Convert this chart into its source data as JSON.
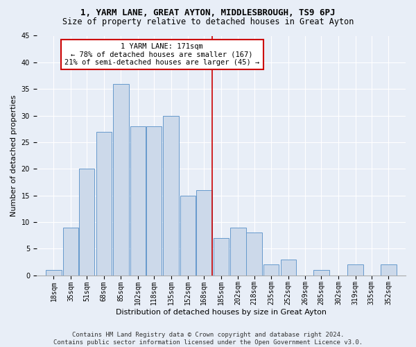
{
  "title": "1, YARM LANE, GREAT AYTON, MIDDLESBROUGH, TS9 6PJ",
  "subtitle": "Size of property relative to detached houses in Great Ayton",
  "xlabel": "Distribution of detached houses by size in Great Ayton",
  "ylabel": "Number of detached properties",
  "footer1": "Contains HM Land Registry data © Crown copyright and database right 2024.",
  "footer2": "Contains public sector information licensed under the Open Government Licence v3.0.",
  "annotation_title": "1 YARM LANE: 171sqm",
  "annotation_line1": "← 78% of detached houses are smaller (167)",
  "annotation_line2": "21% of semi-detached houses are larger (45) →",
  "bar_labels": [
    "18sqm",
    "35sqm",
    "51sqm",
    "68sqm",
    "85sqm",
    "102sqm",
    "118sqm",
    "135sqm",
    "152sqm",
    "168sqm",
    "185sqm",
    "202sqm",
    "218sqm",
    "235sqm",
    "252sqm",
    "269sqm",
    "285sqm",
    "302sqm",
    "319sqm",
    "335sqm",
    "352sqm"
  ],
  "bar_values": [
    1,
    9,
    20,
    27,
    36,
    28,
    28,
    30,
    15,
    16,
    7,
    9,
    8,
    2,
    3,
    0,
    1,
    0,
    2,
    0,
    2
  ],
  "bar_color": "#ccd9ea",
  "bar_edge_color": "#6699cc",
  "vline_color": "#cc0000",
  "annotation_box_color": "#cc0000",
  "background_color": "#e8eef7",
  "grid_color": "#ffffff",
  "ylim": [
    0,
    45
  ],
  "yticks": [
    0,
    5,
    10,
    15,
    20,
    25,
    30,
    35,
    40,
    45
  ],
  "title_fontsize": 9,
  "subtitle_fontsize": 8.5,
  "axis_label_fontsize": 8,
  "tick_fontsize": 7,
  "annotation_fontsize": 7.5,
  "footer_fontsize": 6.5
}
